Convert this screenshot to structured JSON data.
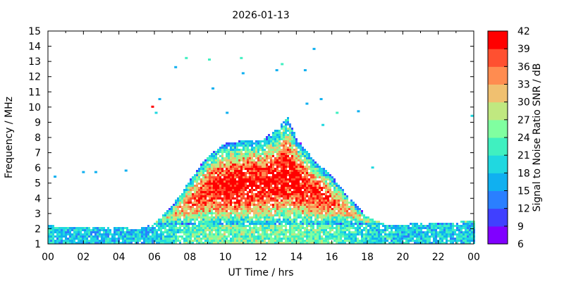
{
  "chart_data": {
    "type": "heatmap",
    "title": "2026-01-13",
    "xlabel": "UT Time / hrs",
    "ylabel": "Frequency / MHz",
    "xlim": [
      0,
      24
    ],
    "ylim": [
      1,
      15
    ],
    "x_ticks": [
      "00",
      "02",
      "04",
      "06",
      "08",
      "10",
      "12",
      "14",
      "16",
      "18",
      "20",
      "22",
      "00"
    ],
    "y_ticks": [
      "1",
      "2",
      "3",
      "4",
      "5",
      "6",
      "7",
      "8",
      "9",
      "10",
      "11",
      "12",
      "13",
      "14",
      "15"
    ],
    "colorbar": {
      "label": "Signal to Noise Ratio SNR / dB",
      "range": [
        6,
        42
      ],
      "ticks": [
        "6",
        "9",
        "12",
        "15",
        "18",
        "21",
        "24",
        "27",
        "30",
        "33",
        "36",
        "39",
        "42"
      ],
      "colors": [
        "#8000ff",
        "#4040ff",
        "#2a7fff",
        "#10b0f0",
        "#20d8e0",
        "#40f0c0",
        "#80ffa0",
        "#c0e880",
        "#f0c070",
        "#ff8c50",
        "#ff5030",
        "#ff0000"
      ]
    },
    "profile": {
      "hours": [
        0,
        2,
        4,
        5,
        6,
        7,
        8,
        9,
        10,
        11,
        12,
        13,
        13.5,
        14,
        15,
        16,
        17,
        18,
        19,
        20,
        22,
        24
      ],
      "upper_edge_mhz": [
        2.2,
        2.1,
        2.1,
        2.0,
        2.3,
        3.5,
        5.2,
        6.8,
        7.6,
        7.8,
        7.8,
        8.6,
        9.4,
        8.0,
        6.5,
        5.5,
        4.0,
        2.8,
        2.3,
        2.3,
        2.4,
        2.5
      ],
      "peak_snr_db": [
        24,
        22,
        20,
        20,
        24,
        30,
        36,
        40,
        42,
        42,
        42,
        42,
        42,
        42,
        40,
        36,
        32,
        28,
        26,
        24,
        25,
        24
      ]
    },
    "scattered_points": [
      {
        "x": 0.4,
        "y": 5.4,
        "snr": 15
      },
      {
        "x": 2.0,
        "y": 5.7,
        "snr": 15
      },
      {
        "x": 2.7,
        "y": 5.7,
        "snr": 15
      },
      {
        "x": 4.4,
        "y": 5.8,
        "snr": 15
      },
      {
        "x": 5.9,
        "y": 10.0,
        "snr": 42
      },
      {
        "x": 6.1,
        "y": 9.6,
        "snr": 18
      },
      {
        "x": 6.3,
        "y": 10.5,
        "snr": 15
      },
      {
        "x": 7.2,
        "y": 12.6,
        "snr": 15
      },
      {
        "x": 7.8,
        "y": 13.2,
        "snr": 21
      },
      {
        "x": 9.1,
        "y": 13.1,
        "snr": 21
      },
      {
        "x": 10.9,
        "y": 13.2,
        "snr": 21
      },
      {
        "x": 11.0,
        "y": 12.2,
        "snr": 15
      },
      {
        "x": 9.3,
        "y": 11.2,
        "snr": 15
      },
      {
        "x": 10.1,
        "y": 9.6,
        "snr": 15
      },
      {
        "x": 14.5,
        "y": 12.4,
        "snr": 15
      },
      {
        "x": 15.0,
        "y": 13.8,
        "snr": 15
      },
      {
        "x": 15.4,
        "y": 10.5,
        "snr": 15
      },
      {
        "x": 15.5,
        "y": 8.8,
        "snr": 18
      },
      {
        "x": 16.3,
        "y": 9.6,
        "snr": 21
      },
      {
        "x": 17.5,
        "y": 9.7,
        "snr": 15
      },
      {
        "x": 14.6,
        "y": 10.2,
        "snr": 15
      },
      {
        "x": 18.3,
        "y": 6.0,
        "snr": 18
      },
      {
        "x": 23.9,
        "y": 9.4,
        "snr": 18
      },
      {
        "x": 12.9,
        "y": 12.4,
        "snr": 15
      },
      {
        "x": 13.2,
        "y": 12.8,
        "snr": 21
      }
    ]
  }
}
